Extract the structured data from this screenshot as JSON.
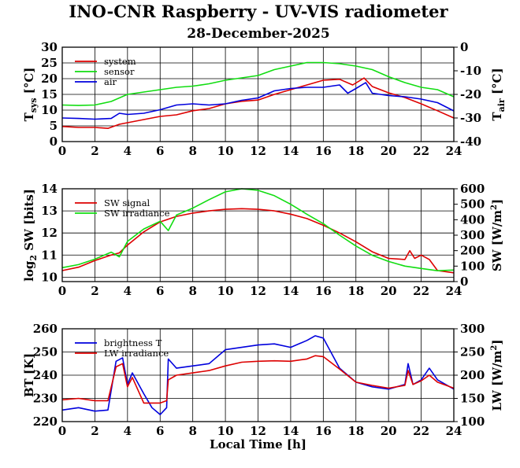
{
  "title": "INO-CNR Raspberry - UV-VIS radiometer",
  "subtitle": "28-December-2025",
  "colors": {
    "red": "#dd0000",
    "green": "#11dd11",
    "blue": "#0000dd",
    "grid": "#000000"
  },
  "chart_data": [
    {
      "type": "line",
      "name": "temperatures",
      "xlabel": "",
      "ylabel_left": "T",
      "ylabel_left_sub": "sys",
      "ylabel_left_unit": " [°C]",
      "ylabel_right": "T",
      "ylabel_right_sub": "air",
      "ylabel_right_unit": " [°C]",
      "xlim": [
        0,
        24
      ],
      "ylim_left": [
        0,
        30
      ],
      "ylim_right": [
        -40,
        0
      ],
      "xticks": [
        0,
        2,
        4,
        6,
        8,
        10,
        12,
        14,
        16,
        18,
        20,
        22,
        24
      ],
      "yticks_left": [
        0,
        5,
        10,
        15,
        20,
        25,
        30
      ],
      "yticks_right": [
        -40,
        -30,
        -20,
        -10,
        0
      ],
      "grid": true,
      "series": [
        {
          "name": "system",
          "color": "#dd0000",
          "axis": "left",
          "x": [
            0,
            1,
            2,
            2.8,
            3.5,
            4,
            5,
            6,
            7,
            8,
            9,
            10,
            11,
            12,
            13,
            14,
            15,
            16,
            17,
            17.8,
            18.5,
            19,
            20,
            21,
            22,
            23,
            24
          ],
          "y": [
            4.8,
            4.5,
            4.5,
            4.2,
            5.5,
            6.0,
            7.0,
            8.0,
            8.5,
            9.8,
            10.5,
            12.0,
            12.8,
            13.2,
            15.0,
            16.5,
            18.0,
            19.5,
            19.8,
            18.0,
            20.2,
            17.5,
            15.5,
            14.0,
            12.0,
            9.8,
            7.5
          ]
        },
        {
          "name": "sensor",
          "color": "#11dd11",
          "axis": "right",
          "x": [
            0,
            1,
            2,
            3,
            4,
            5,
            6,
            7,
            8,
            9,
            10,
            11,
            12,
            13,
            14,
            15,
            16,
            17,
            18,
            19,
            20,
            21,
            22,
            23,
            24
          ],
          "y": [
            -24.5,
            -24.7,
            -24.5,
            -23.0,
            -20.0,
            -19.0,
            -18.0,
            -17.0,
            -16.5,
            -15.5,
            -14.0,
            -13.0,
            -12.0,
            -9.5,
            -8.0,
            -6.5,
            -6.5,
            -7.0,
            -8.0,
            -9.5,
            -12.5,
            -15.0,
            -17.0,
            -18.0,
            -21.0
          ]
        },
        {
          "name": "air",
          "color": "#0000dd",
          "axis": "right",
          "x": [
            0,
            1,
            2,
            3,
            3.5,
            4,
            5,
            6,
            7,
            8,
            9,
            10,
            11,
            12,
            13,
            14,
            15,
            16,
            17,
            17.5,
            18,
            18.6,
            19,
            20,
            21,
            22,
            23,
            24
          ],
          "y": [
            -30.0,
            -30.2,
            -30.5,
            -30.2,
            -28.0,
            -28.5,
            -28.0,
            -26.5,
            -24.5,
            -24.0,
            -24.5,
            -24.0,
            -22.5,
            -21.5,
            -18.5,
            -17.5,
            -17.0,
            -17.0,
            -16.0,
            -19.5,
            -17.5,
            -15.0,
            -19.5,
            -20.5,
            -21.0,
            -22.0,
            -23.5,
            -27.0
          ]
        }
      ],
      "legend": [
        "system",
        "sensor",
        "air"
      ]
    },
    {
      "type": "line",
      "name": "shortwave",
      "xlabel": "",
      "ylabel_left": "log",
      "ylabel_left_sub": "2",
      "ylabel_left_unit": " SW [bits]",
      "ylabel_right": "SW [W/m",
      "ylabel_right_sup": "2",
      "ylabel_right_unit": "]",
      "xlim": [
        0,
        24
      ],
      "ylim_left": [
        9.8,
        14
      ],
      "ylim_right": [
        0,
        600
      ],
      "xticks": [
        0,
        2,
        4,
        6,
        8,
        10,
        12,
        14,
        16,
        18,
        20,
        22,
        24
      ],
      "yticks_left": [
        10,
        11,
        12,
        13,
        14
      ],
      "yticks_right": [
        0,
        100,
        200,
        300,
        400,
        500,
        600
      ],
      "grid": true,
      "series": [
        {
          "name": "SW signal",
          "color": "#dd0000",
          "axis": "left",
          "x": [
            0,
            1,
            2,
            3,
            3.5,
            4,
            5,
            6,
            7,
            8,
            9,
            10,
            11,
            12,
            13,
            14,
            15,
            16,
            17,
            18,
            19,
            20,
            21,
            21.3,
            21.6,
            22,
            22.5,
            23,
            24
          ],
          "y": [
            10.3,
            10.45,
            10.75,
            11.0,
            11.1,
            11.45,
            12.05,
            12.5,
            12.75,
            12.9,
            13.0,
            13.07,
            13.1,
            13.07,
            13.0,
            12.85,
            12.65,
            12.35,
            12.0,
            11.6,
            11.15,
            10.85,
            10.8,
            11.2,
            10.85,
            11.0,
            10.8,
            10.3,
            10.2
          ]
        },
        {
          "name": "SW irradiance",
          "color": "#11dd11",
          "axis": "right",
          "x": [
            0,
            1,
            2,
            3,
            3.5,
            4,
            5,
            6,
            6.5,
            7,
            8,
            9,
            10,
            11,
            12,
            13,
            14,
            15,
            16,
            17,
            18,
            19,
            20,
            21,
            22,
            23,
            24
          ],
          "y": [
            90,
            110,
            145,
            190,
            160,
            260,
            340,
            390,
            330,
            430,
            475,
            530,
            580,
            600,
            590,
            555,
            500,
            435,
            375,
            300,
            230,
            170,
            130,
            100,
            85,
            70,
            75
          ]
        }
      ],
      "legend": [
        "SW signal",
        "SW irradiance"
      ]
    },
    {
      "type": "line",
      "name": "longwave",
      "xlabel": "Local Time [h]",
      "ylabel_left": "BT [K]",
      "ylabel_right": "LW [W/m",
      "ylabel_right_sup": "2",
      "ylabel_right_unit": "]",
      "xlim": [
        0,
        24
      ],
      "ylim_left": [
        220,
        260
      ],
      "ylim_right": [
        100,
        300
      ],
      "xticks": [
        0,
        2,
        4,
        6,
        8,
        10,
        12,
        14,
        16,
        18,
        20,
        22,
        24
      ],
      "yticks_left": [
        220,
        230,
        240,
        250,
        260
      ],
      "yticks_right": [
        100,
        150,
        200,
        250,
        300
      ],
      "grid": true,
      "series": [
        {
          "name": "brightness T",
          "color": "#0000dd",
          "axis": "left",
          "x": [
            0,
            1,
            2,
            2.8,
            3.3,
            3.7,
            4.0,
            4.3,
            5,
            5.5,
            6,
            6.4,
            6.5,
            7,
            8,
            9,
            10,
            11,
            12,
            13,
            14,
            15,
            15.5,
            16,
            17,
            18,
            19,
            20,
            21,
            21.2,
            21.5,
            22,
            22.5,
            23,
            24
          ],
          "y": [
            225,
            226,
            224.5,
            225,
            246,
            247.5,
            236,
            241,
            232,
            226,
            223,
            226,
            247,
            243,
            244,
            245,
            251,
            252,
            253,
            253.5,
            252,
            255,
            257,
            256,
            243,
            237,
            235,
            234,
            236,
            245,
            236,
            238,
            243,
            238,
            234
          ]
        },
        {
          "name": "LW irradiance",
          "color": "#dd0000",
          "axis": "right",
          "x": [
            0,
            1,
            2,
            2.8,
            3.3,
            3.7,
            4.0,
            4.3,
            5,
            6,
            6.4,
            6.5,
            7,
            8,
            9,
            10,
            11,
            12,
            13,
            14,
            15,
            15.5,
            16,
            17,
            18,
            19,
            20,
            21,
            21.2,
            21.5,
            22,
            22.5,
            23,
            24
          ],
          "y": [
            147,
            150,
            145,
            145,
            218,
            225,
            175,
            195,
            140,
            140,
            145,
            190,
            200,
            205,
            210,
            220,
            228,
            230,
            231,
            230,
            235,
            242,
            240,
            213,
            185,
            178,
            172,
            178,
            210,
            180,
            188,
            200,
            185,
            172
          ]
        }
      ],
      "legend": [
        "brightness T",
        "LW irradiance"
      ]
    }
  ]
}
